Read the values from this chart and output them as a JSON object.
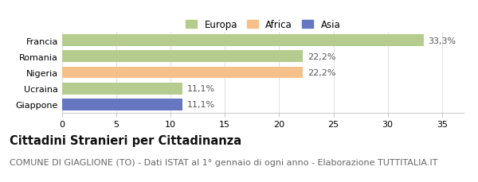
{
  "categories": [
    "Francia",
    "Romania",
    "Nigeria",
    "Ucraina",
    "Giappone"
  ],
  "values": [
    33.3,
    22.2,
    22.2,
    11.1,
    11.1
  ],
  "bar_colors": [
    "#b5cc8e",
    "#b5cc8e",
    "#f5c08a",
    "#b5cc8e",
    "#6477c0"
  ],
  "value_labels": [
    "33,3%",
    "22,2%",
    "22,2%",
    "11,1%",
    "11,1%"
  ],
  "legend_labels": [
    "Europa",
    "Africa",
    "Asia"
  ],
  "legend_colors": [
    "#b5cc8e",
    "#f5c08a",
    "#6477c0"
  ],
  "xlim": [
    0,
    37
  ],
  "xticks": [
    0,
    5,
    10,
    15,
    20,
    25,
    30,
    35
  ],
  "title_bold": "Cittadini Stranieri per Cittadinanza",
  "subtitle": "COMUNE DI GIAGLIONE (TO) - Dati ISTAT al 1° gennaio di ogni anno - Elaborazione TUTTITALIA.IT",
  "background_color": "#ffffff",
  "bar_height": 0.72,
  "title_fontsize": 10.5,
  "subtitle_fontsize": 8,
  "label_fontsize": 8,
  "tick_fontsize": 8,
  "legend_fontsize": 8.5
}
